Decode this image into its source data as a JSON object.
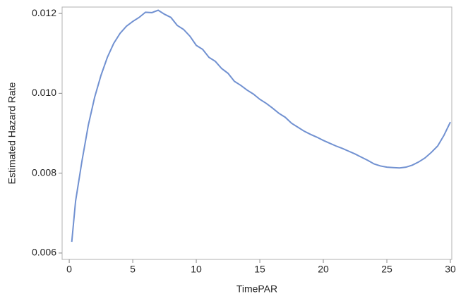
{
  "chart_data": {
    "type": "line",
    "x_label": "TimePAR",
    "y_label": "Estimated Hazard Rate",
    "x": [
      0.2,
      0.5,
      1,
      1.5,
      2,
      2.5,
      3,
      3.5,
      4,
      4.5,
      5,
      5.5,
      6,
      6.5,
      7,
      7.5,
      8,
      8.5,
      9,
      9.5,
      10,
      10.5,
      11,
      11.5,
      12,
      12.5,
      13,
      13.5,
      14,
      14.5,
      15,
      15.5,
      16,
      16.5,
      17,
      17.5,
      18,
      18.5,
      19,
      19.5,
      20,
      20.5,
      21,
      21.5,
      22,
      22.5,
      23,
      23.5,
      24,
      24.5,
      25,
      25.5,
      26,
      26.5,
      27,
      27.5,
      28,
      28.5,
      29,
      29.5,
      30
    ],
    "series": [
      {
        "color": "#7191d1",
        "values": [
          0.00628,
          0.0073,
          0.0083,
          0.0092,
          0.0099,
          0.01045,
          0.0109,
          0.01125,
          0.0115,
          0.01168,
          0.0118,
          0.0119,
          0.01203,
          0.01202,
          0.01208,
          0.01198,
          0.0119,
          0.0117,
          0.0116,
          0.01143,
          0.0112,
          0.0111,
          0.0109,
          0.0108,
          0.01062,
          0.0105,
          0.0103,
          0.0102,
          0.01008,
          0.00998,
          0.00985,
          0.00975,
          0.00963,
          0.0095,
          0.0094,
          0.00925,
          0.00915,
          0.00905,
          0.00897,
          0.0089,
          0.00882,
          0.00875,
          0.00868,
          0.00862,
          0.00855,
          0.00848,
          0.0084,
          0.00832,
          0.00823,
          0.00818,
          0.00815,
          0.00814,
          0.00813,
          0.00815,
          0.0082,
          0.00828,
          0.00838,
          0.00852,
          0.00868,
          0.00895,
          0.00928
        ]
      }
    ],
    "xlim": [
      -0.56,
      30.11
    ],
    "xticks": [
      0,
      5,
      10,
      15,
      20,
      25,
      30
    ],
    "ylim": [
      0.00584,
      0.01216
    ],
    "yticks": [
      0.006,
      0.008,
      {
        "value": 0.01,
        "label": "0.010"
      },
      0.012
    ]
  }
}
